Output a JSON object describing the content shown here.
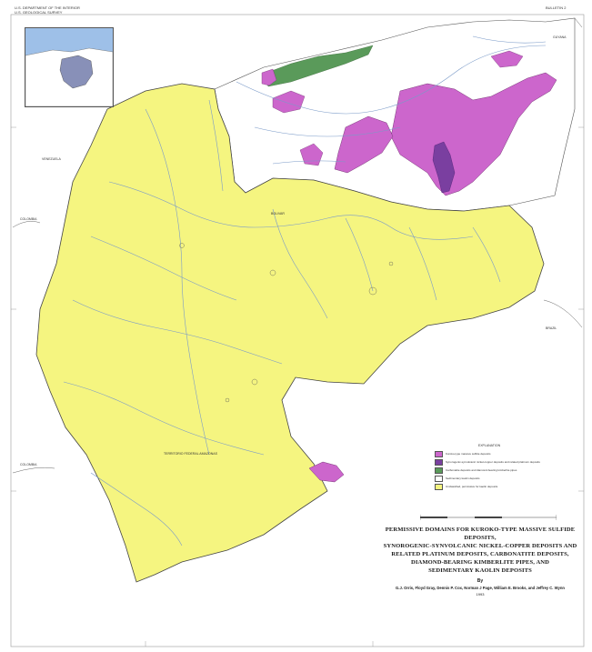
{
  "header": {
    "agency_line1": "U.S. DEPARTMENT OF THE INTERIOR",
    "agency_line2": "U.S. GEOLOGICAL SURVEY",
    "bulletin": "BULLETIN 2"
  },
  "title": {
    "lines": [
      "PERMISSIVE DOMAINS FOR KUROKO-TYPE MASSIVE SULFIDE DEPOSITS,",
      "SYNOROGENIC-SYNVOLCANIC NICKEL-COPPER DEPOSITS AND",
      "RELATED PLATINUM DEPOSITS, CARBONATITE DEPOSITS,",
      "DIAMOND-BEARING KIMBERLITE PIPES, AND",
      "SEDIMENTARY KAOLIN DEPOSITS"
    ],
    "by": "By",
    "authors": "G.J. Orris, Floyd Gray, Dennis P. Cox, Norman J Page, William E. Brooks, and Jeffrey C. Wynn",
    "year": "1993"
  },
  "legend": {
    "title": "EXPLANATION",
    "items": [
      {
        "symbol": "K",
        "color": "#cc66cc",
        "label": "Kuroko-type massive sulfide deposits"
      },
      {
        "symbol": "N",
        "color": "#7a3fa0",
        "label": "Synorogenic-synvolcanic nickel-copper deposits and related platinum deposits"
      },
      {
        "symbol": "C",
        "color": "#5a9a5a",
        "label": "Carbonatite deposits and diamond-bearing kimberlite pipes"
      },
      {
        "symbol": "D",
        "color": "#ffffff",
        "label": "Sedimentary kaolin deposits"
      },
      {
        "symbol": "V",
        "color": "#f5f580",
        "label": "Unclassified, permissive for kaolin deposits"
      }
    ]
  },
  "map_labels": {
    "colombia_west": "COLOMBIA",
    "colombia_south": "COLOMBIA",
    "brazil": "BRAZIL",
    "guyana": "GUYANA",
    "venezuela": "VENEZUELA",
    "amazonas": "TERRITORIO FEDERAL AMAZONAS",
    "bolivar": "BOLIVAR"
  },
  "colors": {
    "permissive_yellow": "#f5f580",
    "kuroko_magenta": "#cc66cc",
    "nickel_purple": "#7a3fa0",
    "carbonatite_green": "#5a9a5a",
    "river_blue": "#7a9ac8",
    "border_dark": "#444444"
  }
}
